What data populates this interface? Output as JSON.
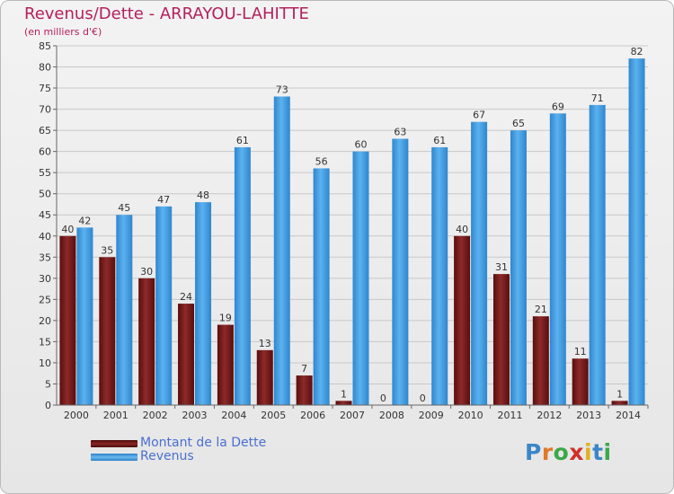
{
  "title": "Revenus/Dette - ARRAYOU-LAHITTE",
  "subtitle": "(en milliers d'€)",
  "logo": {
    "text": "Proxiti",
    "letter_colors": [
      "#3a86c8",
      "#e0782a",
      "#3aa84a",
      "#d0302a",
      "#e0b020",
      "#3a86c8",
      "#3aa84a"
    ]
  },
  "legend": [
    {
      "label": "Montant de la Dette",
      "color": "#7a1a1a"
    },
    {
      "label": "Revenus",
      "color": "#3e9be0"
    }
  ],
  "chart_data": {
    "type": "bar",
    "title": "Revenus/Dette - ARRAYOU-LAHITTE",
    "subtitle": "(en milliers d'€)",
    "categories": [
      "2000",
      "2001",
      "2002",
      "2003",
      "2004",
      "2005",
      "2006",
      "2007",
      "2008",
      "2009",
      "2010",
      "2011",
      "2012",
      "2013",
      "2014"
    ],
    "series": [
      {
        "name": "Montant de la Dette",
        "color": "#7a1a1a",
        "values": [
          40,
          35,
          30,
          24,
          19,
          13,
          7,
          1,
          0,
          0,
          40,
          31,
          21,
          11,
          1
        ]
      },
      {
        "name": "Revenus",
        "color": "#3e9be0",
        "values": [
          42,
          45,
          47,
          48,
          61,
          73,
          56,
          60,
          63,
          61,
          67,
          65,
          69,
          71,
          82
        ]
      }
    ],
    "ylim": [
      0,
      85
    ],
    "yticks": [
      0,
      5,
      10,
      15,
      20,
      25,
      30,
      35,
      40,
      45,
      50,
      55,
      60,
      65,
      70,
      75,
      80,
      85
    ],
    "grid": true,
    "legend_position": "bottom-left"
  }
}
